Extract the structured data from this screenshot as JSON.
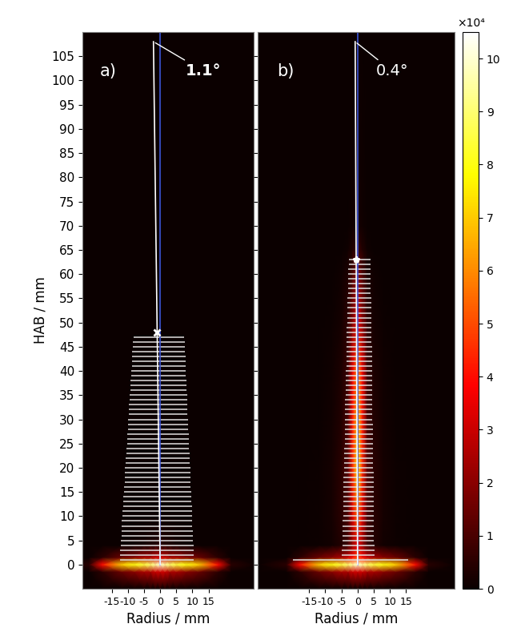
{
  "chart_data": [
    {
      "type": "heatmap",
      "label": "a)",
      "x_label": "Radius / mm",
      "y_label": "HAB / mm",
      "xlim": [
        -24,
        29
      ],
      "ylim": [
        -5,
        110
      ],
      "xticks": [
        -15,
        -10,
        -5,
        0,
        5,
        10,
        15
      ],
      "yticks": [
        0,
        5,
        10,
        15,
        20,
        25,
        30,
        35,
        40,
        45,
        50,
        55,
        60,
        65,
        70,
        75,
        80,
        85,
        90,
        95,
        100,
        105
      ],
      "heatmap": {
        "x": [
          -31,
          -22,
          -18,
          -12,
          -8,
          -5,
          -3,
          -1.5,
          0,
          1.5,
          3,
          5,
          8,
          12,
          18,
          22,
          30
        ],
        "y": [
          -5,
          -1.5,
          0,
          1.5,
          4,
          10,
          20,
          30,
          40,
          50,
          60,
          65,
          70,
          110
        ],
        "values": [
          [
            0,
            0,
            0,
            0,
            0,
            0,
            0,
            0,
            0,
            0,
            0,
            0,
            0,
            0,
            0,
            0,
            0
          ],
          [
            0,
            0,
            0.5,
            1.5,
            2,
            2.5,
            2.5,
            3,
            3,
            3,
            2.5,
            2.5,
            2,
            1.5,
            0.5,
            0,
            0
          ],
          [
            0,
            0.5,
            4,
            7,
            8,
            8.5,
            9,
            9.5,
            10,
            9.5,
            9,
            8.5,
            8,
            7,
            4,
            0.5,
            0
          ],
          [
            0,
            0,
            0.5,
            1.5,
            2,
            2.5,
            2.5,
            3,
            3,
            3,
            2.5,
            2.5,
            2,
            1.5,
            0.5,
            0,
            0
          ],
          [
            0,
            0,
            0,
            0,
            0.1,
            0.2,
            0.3,
            0.4,
            0.5,
            0.4,
            0.3,
            0.2,
            0.1,
            0,
            0,
            0,
            0
          ],
          [
            0,
            0,
            0,
            0,
            0,
            0,
            0,
            0,
            0,
            0,
            0,
            0,
            0,
            0,
            0,
            0,
            0
          ],
          [
            0,
            0,
            0,
            0,
            0,
            0,
            0,
            0,
            0,
            0,
            0,
            0,
            0,
            0,
            0,
            0,
            0
          ],
          [
            0,
            0,
            0,
            0,
            0,
            0,
            0,
            0,
            0,
            0,
            0,
            0,
            0,
            0,
            0,
            0,
            0
          ],
          [
            0,
            0,
            0,
            0,
            0,
            0,
            0,
            0,
            0,
            0,
            0,
            0,
            0,
            0,
            0,
            0,
            0
          ],
          [
            0,
            0,
            0,
            0,
            0,
            0,
            0,
            0,
            0,
            0,
            0,
            0,
            0,
            0,
            0,
            0,
            0
          ],
          [
            0,
            0,
            0,
            0,
            0,
            0,
            0,
            0,
            0,
            0,
            0,
            0,
            0,
            0,
            0,
            0,
            0
          ],
          [
            0,
            0,
            0,
            0,
            0,
            0,
            0,
            0,
            0,
            0,
            0,
            0,
            0,
            0,
            0,
            0,
            0
          ],
          [
            0,
            0,
            0,
            0,
            0,
            0,
            0,
            0,
            0,
            0,
            0,
            0,
            0,
            0,
            0,
            0,
            0
          ],
          [
            0,
            0,
            0,
            0,
            0,
            0,
            0,
            0,
            0,
            0,
            0,
            0,
            0,
            0,
            0,
            0,
            0
          ]
        ]
      },
      "width_lines": {
        "color": "#e0e0e0",
        "hab": [
          1,
          2,
          3,
          4,
          5,
          6,
          7,
          8,
          9,
          10,
          11,
          12,
          13,
          14,
          15,
          16,
          17,
          18,
          19,
          20,
          21,
          22,
          23,
          24,
          25,
          26,
          27,
          28,
          29,
          30,
          31,
          32,
          33,
          34,
          35,
          36,
          37,
          38,
          39,
          40,
          41,
          42,
          43,
          44,
          45,
          46,
          47
        ],
        "left": [
          -12.5,
          -12.4,
          -12.3,
          -12.2,
          -12.1,
          -12.0,
          -12.0,
          -11.9,
          -11.8,
          -11.7,
          -11.6,
          -11.5,
          -11.4,
          -11.3,
          -11.2,
          -11.1,
          -11.0,
          -10.9,
          -10.9,
          -10.8,
          -10.7,
          -10.6,
          -10.5,
          -10.4,
          -10.3,
          -10.2,
          -10.1,
          -10.0,
          -9.9,
          -9.9,
          -9.8,
          -9.7,
          -9.6,
          -9.5,
          -9.4,
          -9.3,
          -9.2,
          -9.1,
          -9.0,
          -8.9,
          -8.8,
          -8.8,
          -8.7,
          -8.6,
          -8.5,
          -8.4,
          -8.3
        ],
        "right": [
          10.5,
          10.4,
          10.4,
          10.3,
          10.2,
          10.2,
          10.1,
          10.0,
          10.0,
          9.9,
          9.8,
          9.8,
          9.7,
          9.7,
          9.6,
          9.5,
          9.5,
          9.4,
          9.3,
          9.3,
          9.2,
          9.1,
          9.1,
          9.0,
          8.9,
          8.9,
          8.8,
          8.7,
          8.7,
          8.6,
          8.5,
          8.5,
          8.4,
          8.3,
          8.3,
          8.2,
          8.2,
          8.1,
          8.0,
          8.0,
          7.9,
          7.8,
          7.8,
          7.7,
          7.6,
          7.6,
          7.5
        ]
      },
      "center_line": {
        "color": "#3c55d8",
        "x": [
          0,
          0
        ],
        "y": [
          0,
          110
        ]
      },
      "fit_line": {
        "color": "#ffffff",
        "x": [
          0,
          -0.92,
          -2.07
        ],
        "y": [
          0,
          48,
          108
        ]
      },
      "end_point": {
        "x": -0.92,
        "y": 48,
        "marker": "x",
        "color": "#ffffff"
      },
      "angle_label": "1.1°"
    },
    {
      "type": "heatmap",
      "label": "b)",
      "x_label": "Radius / mm",
      "tick_labels": "x",
      "xlim": [
        -31,
        30
      ],
      "ylim": [
        -5,
        110
      ],
      "xticks": [
        -15,
        -10,
        -5,
        0,
        5,
        10,
        15
      ],
      "yticks": [
        0,
        5,
        10,
        15,
        20,
        25,
        30,
        35,
        40,
        45,
        50,
        55,
        60,
        65,
        70,
        75,
        80,
        85,
        90,
        95,
        100,
        105
      ],
      "heatmap": {
        "x": [
          -31,
          -22,
          -18,
          -12,
          -8,
          -5,
          -3,
          -1.5,
          0,
          1.5,
          3,
          5,
          8,
          12,
          18,
          22,
          30
        ],
        "y": [
          -5,
          -1.5,
          0,
          1.5,
          4,
          10,
          20,
          30,
          40,
          50,
          60,
          65,
          70,
          110
        ],
        "values": [
          [
            0,
            0,
            0,
            0,
            0,
            0,
            0,
            0,
            0,
            0,
            0,
            0,
            0,
            0,
            0,
            0,
            0
          ],
          [
            0,
            0,
            0.5,
            1.5,
            2,
            2.5,
            2.5,
            3,
            3,
            3,
            2.5,
            2.5,
            2,
            1.5,
            0.5,
            0,
            0
          ],
          [
            0,
            0.5,
            4,
            7,
            8,
            8.5,
            9,
            9.5,
            10,
            9.5,
            9,
            8.5,
            8,
            7,
            4,
            0.5,
            0
          ],
          [
            0,
            0,
            0.5,
            1.5,
            2,
            2.5,
            3,
            4,
            5,
            4,
            3,
            2.5,
            2,
            1.5,
            0.5,
            0,
            0
          ],
          [
            0,
            0,
            0,
            0.05,
            0.15,
            0.4,
            0.8,
            2.2,
            3.5,
            2.2,
            0.8,
            0.4,
            0.15,
            0.05,
            0,
            0,
            0
          ],
          [
            0,
            0,
            0,
            0.05,
            0.2,
            0.5,
            1,
            3.3,
            5.5,
            3.3,
            1,
            0.5,
            0.2,
            0.05,
            0,
            0,
            0
          ],
          [
            0,
            0,
            0,
            0.05,
            0.2,
            0.5,
            1.2,
            4.5,
            7.5,
            4.5,
            1.2,
            0.5,
            0.2,
            0.05,
            0,
            0,
            0
          ],
          [
            0,
            0,
            0,
            0,
            0.15,
            0.4,
            1,
            4.2,
            7,
            4.2,
            1,
            0.4,
            0.15,
            0,
            0,
            0,
            0
          ],
          [
            0,
            0,
            0,
            0,
            0.1,
            0.3,
            0.8,
            3.6,
            6,
            3.6,
            0.8,
            0.3,
            0.1,
            0,
            0,
            0,
            0
          ],
          [
            0,
            0,
            0,
            0,
            0.05,
            0.2,
            0.6,
            2,
            3.5,
            2,
            0.6,
            0.2,
            0.05,
            0,
            0,
            0,
            0
          ],
          [
            0,
            0,
            0,
            0,
            0,
            0.1,
            0.3,
            1.1,
            2,
            1.1,
            0.3,
            0.1,
            0,
            0,
            0,
            0,
            0
          ],
          [
            0,
            0,
            0,
            0,
            0,
            0,
            0.1,
            0.4,
            0.8,
            0.4,
            0.1,
            0,
            0,
            0,
            0,
            0,
            0
          ],
          [
            0,
            0,
            0,
            0,
            0,
            0,
            0,
            0.1,
            0.2,
            0.1,
            0,
            0,
            0,
            0,
            0,
            0,
            0
          ],
          [
            0,
            0,
            0,
            0,
            0,
            0,
            0,
            0,
            0,
            0,
            0,
            0,
            0,
            0,
            0,
            0,
            0
          ]
        ]
      },
      "width_lines": {
        "color": "#e0e0e0",
        "hab": [
          1,
          2,
          3,
          4,
          5,
          6,
          7,
          8,
          9,
          10,
          11,
          12,
          13,
          14,
          15,
          16,
          17,
          18,
          19,
          20,
          21,
          22,
          23,
          24,
          25,
          26,
          27,
          28,
          29,
          30,
          31,
          32,
          33,
          34,
          35,
          36,
          37,
          38,
          39,
          40,
          41,
          42,
          43,
          44,
          45,
          46,
          47,
          48,
          49,
          50,
          51,
          52,
          53,
          54,
          55,
          56,
          57,
          58,
          59,
          60,
          61,
          62,
          63
        ],
        "left": [
          -20.0,
          -4.8,
          -4.8,
          -4.7,
          -4.7,
          -4.7,
          -4.6,
          -4.6,
          -4.6,
          -4.5,
          -4.5,
          -4.5,
          -4.4,
          -4.4,
          -4.4,
          -4.3,
          -4.3,
          -4.3,
          -4.2,
          -4.2,
          -4.2,
          -4.1,
          -4.1,
          -4.1,
          -4.0,
          -4.0,
          -4.0,
          -3.9,
          -3.9,
          -3.9,
          -3.8,
          -3.8,
          -3.8,
          -3.8,
          -3.7,
          -3.7,
          -3.7,
          -3.6,
          -3.6,
          -3.6,
          -3.5,
          -3.5,
          -3.5,
          -3.4,
          -3.4,
          -3.4,
          -3.3,
          -3.3,
          -3.3,
          -3.2,
          -3.2,
          -3.2,
          -3.1,
          -3.1,
          -3.1,
          -3.0,
          -3.0,
          -3.0,
          -2.9,
          -2.9,
          -2.9,
          -2.8,
          -2.8
        ],
        "right": [
          15.7,
          5.2,
          5.2,
          5.2,
          5.1,
          5.1,
          5.1,
          5.1,
          5.1,
          5.0,
          5.0,
          5.0,
          5.0,
          5.0,
          4.9,
          4.9,
          4.9,
          4.9,
          4.9,
          4.8,
          4.8,
          4.8,
          4.8,
          4.8,
          4.7,
          4.7,
          4.7,
          4.7,
          4.7,
          4.6,
          4.6,
          4.6,
          4.6,
          4.6,
          4.6,
          4.5,
          4.5,
          4.5,
          4.5,
          4.5,
          4.4,
          4.4,
          4.4,
          4.4,
          4.4,
          4.3,
          4.3,
          4.3,
          4.3,
          4.3,
          4.2,
          4.2,
          4.2,
          4.2,
          4.2,
          4.1,
          4.1,
          4.1,
          4.1,
          4.1,
          4.0,
          4.0,
          4.0
        ]
      },
      "center_line": {
        "color": "#3c55d8",
        "x": [
          0,
          0
        ],
        "y": [
          0,
          110
        ]
      },
      "fit_line": {
        "color": "#ffffff",
        "x": [
          0,
          -0.44,
          -0.75
        ],
        "y": [
          0,
          63,
          108
        ]
      },
      "end_point": {
        "x": -0.44,
        "y": 63,
        "marker": "star",
        "color": "#ffffff"
      },
      "angle_label": "0.4°"
    }
  ],
  "colorbar": {
    "range": [
      0,
      10.5
    ],
    "ticks": [
      0,
      1,
      2,
      3,
      4,
      5,
      6,
      7,
      8,
      9,
      10
    ],
    "label": "×10⁴"
  }
}
